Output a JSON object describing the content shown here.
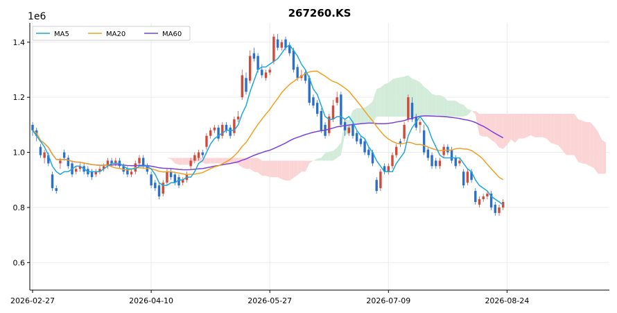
{
  "chart_data": {
    "type": "candlestick",
    "title": "267260.KS",
    "y_offset_label": "1e6",
    "xlabel": "",
    "ylabel": "",
    "x_tick_labels": [
      "2026-02-27",
      "2026-04-10",
      "2026-05-27",
      "2026-07-09",
      "2026-08-24"
    ],
    "y_tick_labels": [
      "0.6",
      "0.8",
      "1.0",
      "1.2",
      "1.4"
    ],
    "y_ticks": [
      0.6,
      0.8,
      1.0,
      1.2,
      1.4
    ],
    "ylim": [
      0.5,
      1.47
    ],
    "grid": true,
    "legend_position": "top-left",
    "legend": [
      {
        "name": "MA5",
        "color": "#1ba6dc"
      },
      {
        "name": "MA20",
        "color": "#f0a020"
      },
      {
        "name": "MA60",
        "color": "#7b3fdc"
      }
    ],
    "colors": {
      "up": "#d04a3a",
      "down": "#2a6fc9",
      "cloud_bull": "#d3ecd9",
      "cloud_bear": "#fbd5d5"
    },
    "n_candles": 120,
    "n_total_slots": 146,
    "ohlc_close": [
      1.08,
      1.06,
      0.99,
      1.0,
      0.96,
      0.87,
      0.86,
      0.97,
      0.98,
      0.95,
      0.92,
      0.94,
      0.95,
      0.93,
      0.92,
      0.91,
      0.93,
      0.94,
      0.95,
      0.97,
      0.96,
      0.97,
      0.95,
      0.93,
      0.92,
      0.93,
      0.96,
      0.98,
      0.95,
      0.93,
      0.88,
      0.87,
      0.84,
      0.89,
      0.93,
      0.91,
      0.89,
      0.88,
      0.9,
      0.92,
      0.97,
      0.99,
      1.0,
      0.99,
      1.06,
      1.08,
      1.09,
      1.05,
      1.1,
      1.08,
      1.06,
      1.12,
      1.13,
      1.28,
      1.22,
      1.35,
      1.34,
      1.3,
      1.28,
      1.29,
      1.3,
      1.42,
      1.38,
      1.4,
      1.38,
      1.36,
      1.3,
      1.27,
      1.28,
      1.26,
      1.18,
      1.17,
      1.14,
      1.08,
      1.06,
      1.13,
      1.17,
      1.2,
      1.1,
      1.08,
      1.09,
      1.06,
      1.04,
      1.03,
      1.0,
      0.99,
      0.96,
      0.86,
      0.93,
      0.93,
      0.95,
      0.99,
      1.02,
      1.03,
      1.1,
      1.2,
      1.12,
      1.09,
      1.11,
      1.0,
      0.98,
      0.95,
      0.95,
      0.97,
      1.02,
      1.0,
      0.97,
      0.95,
      0.97,
      0.88,
      0.93,
      0.9,
      0.82,
      0.83,
      0.84,
      0.85,
      0.8,
      0.78,
      0.8,
      0.82
    ],
    "ohlc_open": [
      1.1,
      1.08,
      1.02,
      0.98,
      0.99,
      0.92,
      0.87,
      0.96,
      1.0,
      0.98,
      0.96,
      0.93,
      0.94,
      0.95,
      0.94,
      0.93,
      0.92,
      0.93,
      0.94,
      0.95,
      0.97,
      0.96,
      0.97,
      0.95,
      0.94,
      0.92,
      0.93,
      0.96,
      0.98,
      0.95,
      0.92,
      0.89,
      0.88,
      0.85,
      0.89,
      0.93,
      0.92,
      0.91,
      0.89,
      0.9,
      0.95,
      0.97,
      0.98,
      1.0,
      1.02,
      1.06,
      1.08,
      1.09,
      1.06,
      1.1,
      1.09,
      1.07,
      1.12,
      1.2,
      1.27,
      1.26,
      1.36,
      1.35,
      1.3,
      1.27,
      1.29,
      1.33,
      1.41,
      1.38,
      1.41,
      1.39,
      1.37,
      1.31,
      1.27,
      1.29,
      1.27,
      1.2,
      1.18,
      1.15,
      1.1,
      1.07,
      1.12,
      1.18,
      1.21,
      1.11,
      1.07,
      1.1,
      1.07,
      1.05,
      1.04,
      1.01,
      1.0,
      0.9,
      0.87,
      0.95,
      0.93,
      0.95,
      0.99,
      1.04,
      1.05,
      1.12,
      1.18,
      1.13,
      1.1,
      1.08,
      1.01,
      0.99,
      0.97,
      0.95,
      0.99,
      1.02,
      1.01,
      0.98,
      0.96,
      0.93,
      0.89,
      0.93,
      0.86,
      0.81,
      0.83,
      0.84,
      0.85,
      0.81,
      0.78,
      0.8
    ],
    "ohlc_high": [
      1.11,
      1.09,
      1.03,
      1.01,
      1.0,
      0.93,
      0.88,
      0.98,
      1.01,
      0.99,
      0.97,
      0.95,
      0.96,
      0.96,
      0.95,
      0.94,
      0.94,
      0.95,
      0.96,
      0.98,
      0.98,
      0.98,
      0.98,
      0.96,
      0.95,
      0.94,
      0.97,
      0.99,
      0.99,
      0.96,
      0.93,
      0.9,
      0.89,
      0.9,
      0.94,
      0.94,
      0.93,
      0.92,
      0.91,
      0.93,
      0.98,
      1.0,
      1.01,
      1.01,
      1.07,
      1.09,
      1.1,
      1.1,
      1.11,
      1.11,
      1.1,
      1.13,
      1.15,
      1.3,
      1.29,
      1.37,
      1.38,
      1.36,
      1.32,
      1.3,
      1.31,
      1.43,
      1.43,
      1.41,
      1.42,
      1.4,
      1.38,
      1.32,
      1.3,
      1.3,
      1.28,
      1.21,
      1.19,
      1.16,
      1.11,
      1.14,
      1.19,
      1.22,
      1.22,
      1.12,
      1.1,
      1.11,
      1.08,
      1.06,
      1.05,
      1.02,
      1.01,
      0.91,
      0.94,
      0.96,
      0.96,
      1.0,
      1.03,
      1.05,
      1.11,
      1.21,
      1.2,
      1.14,
      1.12,
      1.1,
      1.02,
      1.0,
      0.98,
      0.98,
      1.03,
      1.03,
      1.02,
      0.99,
      0.98,
      0.94,
      0.94,
      0.94,
      0.87,
      0.84,
      0.85,
      0.86,
      0.86,
      0.82,
      0.81,
      0.83
    ],
    "ohlc_low": [
      1.06,
      1.04,
      0.98,
      0.96,
      0.95,
      0.86,
      0.85,
      0.94,
      0.97,
      0.94,
      0.91,
      0.92,
      0.93,
      0.92,
      0.91,
      0.9,
      0.91,
      0.92,
      0.93,
      0.94,
      0.95,
      0.95,
      0.94,
      0.92,
      0.91,
      0.91,
      0.92,
      0.95,
      0.94,
      0.92,
      0.87,
      0.86,
      0.83,
      0.84,
      0.88,
      0.9,
      0.88,
      0.87,
      0.88,
      0.89,
      0.94,
      0.96,
      0.97,
      0.98,
      1.01,
      1.05,
      1.07,
      1.04,
      1.05,
      1.07,
      1.05,
      1.06,
      1.11,
      1.19,
      1.21,
      1.25,
      1.33,
      1.29,
      1.27,
      1.26,
      1.28,
      1.32,
      1.37,
      1.37,
      1.37,
      1.35,
      1.29,
      1.26,
      1.26,
      1.25,
      1.17,
      1.16,
      1.13,
      1.07,
      1.05,
      1.06,
      1.11,
      1.17,
      1.09,
      1.06,
      1.06,
      1.05,
      1.03,
      1.02,
      0.99,
      0.98,
      0.95,
      0.85,
      0.86,
      0.92,
      0.92,
      0.94,
      0.98,
      1.02,
      1.04,
      1.11,
      1.11,
      1.08,
      1.07,
      0.99,
      0.97,
      0.94,
      0.94,
      0.94,
      0.98,
      0.99,
      0.96,
      0.94,
      0.95,
      0.87,
      0.88,
      0.89,
      0.81,
      0.8,
      0.82,
      0.83,
      0.79,
      0.77,
      0.77,
      0.79
    ],
    "ma5": [
      1.08,
      1.06,
      1.04,
      1.02,
      0.99,
      0.95,
      0.93,
      0.92,
      0.93,
      0.93,
      0.94,
      0.95,
      0.95,
      0.94,
      0.93,
      0.93,
      0.93,
      0.93,
      0.94,
      0.95,
      0.96,
      0.96,
      0.96,
      0.95,
      0.94,
      0.94,
      0.94,
      0.95,
      0.95,
      0.95,
      0.94,
      0.92,
      0.89,
      0.88,
      0.88,
      0.89,
      0.89,
      0.9,
      0.9,
      0.91,
      0.91,
      0.93,
      0.96,
      0.97,
      1.0,
      1.03,
      1.05,
      1.06,
      1.07,
      1.08,
      1.08,
      1.08,
      1.1,
      1.14,
      1.17,
      1.22,
      1.26,
      1.3,
      1.31,
      1.31,
      1.32,
      1.33,
      1.34,
      1.36,
      1.38,
      1.39,
      1.37,
      1.35,
      1.32,
      1.3,
      1.27,
      1.23,
      1.21,
      1.17,
      1.13,
      1.12,
      1.12,
      1.13,
      1.13,
      1.12,
      1.13,
      1.11,
      1.08,
      1.06,
      1.05,
      1.02,
      1.0,
      0.97,
      0.95,
      0.93,
      0.93,
      0.93,
      0.96,
      0.98,
      1.0,
      1.06,
      1.09,
      1.11,
      1.13,
      1.11,
      1.09,
      1.05,
      1.02,
      0.99,
      0.98,
      0.98,
      0.98,
      0.98,
      0.98,
      0.96,
      0.94,
      0.93,
      0.9,
      0.88,
      0.87,
      0.86,
      0.84,
      0.83,
      0.82,
      0.81
    ]
  }
}
